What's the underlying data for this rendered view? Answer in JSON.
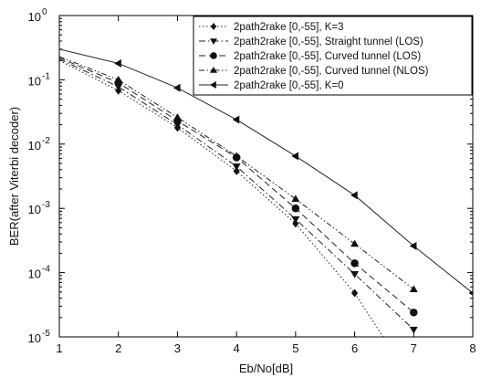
{
  "chart_data": {
    "type": "line",
    "xlabel": "Eb/No[dB]",
    "ylabel": "BER(after Viterbi decoder)",
    "xlim": [
      1,
      8
    ],
    "ylim": [
      1e-05,
      1
    ],
    "yscale": "log",
    "x_ticks": [
      1,
      2,
      3,
      4,
      5,
      6,
      7,
      8
    ],
    "y_ticks": [
      {
        "value": 1,
        "mantissa": "10",
        "exponent": "0"
      },
      {
        "value": 0.1,
        "mantissa": "10",
        "exponent": "-1"
      },
      {
        "value": 0.01,
        "mantissa": "10",
        "exponent": "-2"
      },
      {
        "value": 0.001,
        "mantissa": "10",
        "exponent": "-3"
      },
      {
        "value": 0.0001,
        "mantissa": "10",
        "exponent": "-4"
      },
      {
        "value": 1e-05,
        "mantissa": "10",
        "exponent": "-5"
      }
    ],
    "grid": false,
    "legend_position": "top-right",
    "series": [
      {
        "name": "2path2rake [0,-55], K=3",
        "marker": "diamond",
        "dash": "dotted",
        "x": [
          1,
          2,
          3,
          4,
          5,
          6,
          6.5
        ],
        "y": [
          0.2,
          0.068,
          0.018,
          0.0038,
          0.00058,
          4.8e-05,
          9.5e-06
        ],
        "markers_on": [
          false,
          true,
          true,
          true,
          true,
          true,
          false
        ]
      },
      {
        "name": "2path2rake [0,-55], Straight tunnel (LOS)",
        "marker": "triangle-down",
        "dash": "dash-dot",
        "x": [
          1,
          2,
          3,
          4,
          5,
          6,
          7
        ],
        "y": [
          0.21,
          0.078,
          0.02,
          0.0045,
          0.00068,
          9.5e-05,
          1.3e-05
        ],
        "markers_on": [
          false,
          true,
          true,
          true,
          true,
          true,
          true
        ]
      },
      {
        "name": "2path2rake [0,-55], Curved tunnel (LOS)",
        "marker": "circle",
        "dash": "dashed",
        "x": [
          1,
          2,
          3,
          4,
          5,
          6,
          7
        ],
        "y": [
          0.22,
          0.09,
          0.023,
          0.0062,
          0.001,
          0.00014,
          2.4e-05
        ],
        "markers_on": [
          false,
          true,
          true,
          true,
          true,
          true,
          true
        ]
      },
      {
        "name": "2path2rake [0,-55], Curved tunnel (NLOS)",
        "marker": "triangle-up",
        "dash": "dash-dot-dot",
        "x": [
          1,
          2,
          3,
          4,
          5,
          6,
          7
        ],
        "y": [
          0.23,
          0.1,
          0.026,
          0.0065,
          0.0014,
          0.00028,
          5.5e-05
        ],
        "markers_on": [
          false,
          true,
          true,
          true,
          true,
          true,
          true
        ]
      },
      {
        "name": "2path2rake [0,-55], K=0",
        "marker": "triangle-left",
        "dash": "solid",
        "x": [
          1,
          2,
          3,
          4,
          5,
          6,
          7,
          8
        ],
        "y": [
          0.3,
          0.18,
          0.075,
          0.024,
          0.0065,
          0.0016,
          0.00026,
          4.8e-05
        ],
        "markers_on": [
          false,
          true,
          true,
          true,
          true,
          true,
          true,
          true
        ]
      }
    ]
  }
}
